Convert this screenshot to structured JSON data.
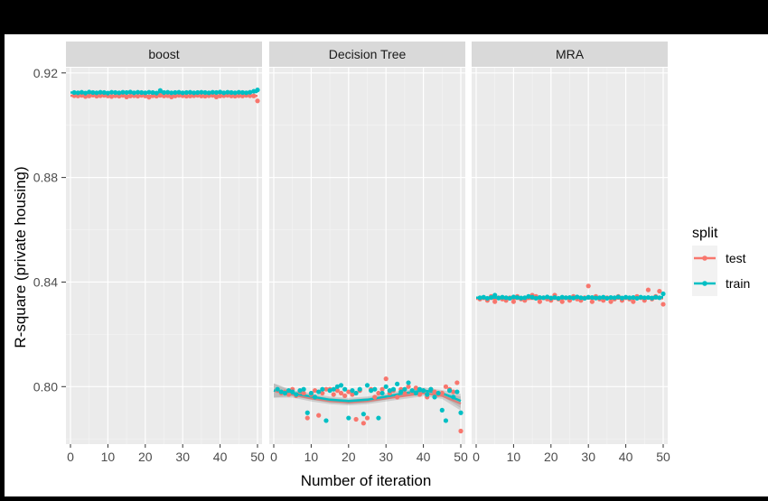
{
  "chart_data": {
    "type": "scatter",
    "facet_by": "model",
    "panels": [
      "boost",
      "Decision Tree",
      "MRA"
    ],
    "xlabel": "Number of iteration",
    "ylabel": "R-square (private housing)",
    "xlim": [
      0,
      50
    ],
    "xticks": [
      0,
      10,
      20,
      30,
      40,
      50
    ],
    "ylim": [
      0.778,
      0.922
    ],
    "yticks": [
      0.8,
      0.84,
      0.88,
      0.92
    ],
    "ytick_labels": [
      "0.80",
      "0.84",
      "0.88",
      "0.92"
    ],
    "grid": true,
    "smooth_overlay": true,
    "legend": {
      "title": "split",
      "position": "right",
      "entries": [
        {
          "name": "test",
          "color": "#F8766D"
        },
        {
          "name": "train",
          "color": "#00BFC4"
        }
      ]
    },
    "x": [
      1,
      2,
      3,
      4,
      5,
      6,
      7,
      8,
      9,
      10,
      11,
      12,
      13,
      14,
      15,
      16,
      17,
      18,
      19,
      20,
      21,
      22,
      23,
      24,
      25,
      26,
      27,
      28,
      29,
      30,
      31,
      32,
      33,
      34,
      35,
      36,
      37,
      38,
      39,
      40,
      41,
      42,
      43,
      44,
      45,
      46,
      47,
      48,
      49,
      50
    ],
    "series": [
      {
        "panel": "boost",
        "name": "test",
        "values": [
          0.9113,
          0.9112,
          0.9114,
          0.911,
          0.9112,
          0.9115,
          0.9111,
          0.9113,
          0.9114,
          0.9112,
          0.911,
          0.9113,
          0.9111,
          0.9114,
          0.9108,
          0.9112,
          0.9113,
          0.9111,
          0.9114,
          0.9112,
          0.9107,
          0.9113,
          0.9111,
          0.9114,
          0.9112,
          0.9113,
          0.9108,
          0.9112,
          0.9114,
          0.9113,
          0.9111,
          0.9112,
          0.9113,
          0.9114,
          0.9112,
          0.9111,
          0.9113,
          0.9114,
          0.9108,
          0.9112,
          0.9113,
          0.9114,
          0.9112,
          0.9111,
          0.9113,
          0.9112,
          0.9114,
          0.9113,
          0.9112,
          0.9093
        ]
      },
      {
        "panel": "boost",
        "name": "train",
        "values": [
          0.9125,
          0.9124,
          0.9126,
          0.9123,
          0.9127,
          0.9125,
          0.9124,
          0.9126,
          0.9125,
          0.9123,
          0.9126,
          0.9125,
          0.9124,
          0.9126,
          0.9125,
          0.9127,
          0.9124,
          0.9126,
          0.9125,
          0.9124,
          0.9126,
          0.9125,
          0.9123,
          0.9133,
          0.9125,
          0.9126,
          0.9124,
          0.9125,
          0.9126,
          0.9124,
          0.9125,
          0.9126,
          0.9124,
          0.9125,
          0.9126,
          0.9125,
          0.9124,
          0.9126,
          0.9125,
          0.9127,
          0.9124,
          0.9126,
          0.9125,
          0.9124,
          0.9126,
          0.9125,
          0.9124,
          0.9126,
          0.913,
          0.9135
        ]
      },
      {
        "panel": "Decision Tree",
        "name": "test",
        "values": [
          0.7985,
          0.7975,
          0.798,
          0.797,
          0.799,
          0.7965,
          0.798,
          0.7975,
          0.788,
          0.797,
          0.7985,
          0.789,
          0.7975,
          0.799,
          0.799,
          0.797,
          0.7985,
          0.7975,
          0.7965,
          0.798,
          0.797,
          0.7875,
          0.7985,
          0.786,
          0.788,
          0.799,
          0.796,
          0.7975,
          0.799,
          0.803,
          0.7975,
          0.7985,
          0.796,
          0.799,
          0.7975,
          0.8,
          0.798,
          0.7995,
          0.797,
          0.7985,
          0.796,
          0.799,
          0.798,
          0.797,
          0.7975,
          0.8,
          0.799,
          0.798,
          0.8015,
          0.783
        ]
      },
      {
        "panel": "Decision Tree",
        "name": "train",
        "values": [
          0.799,
          0.798,
          0.7975,
          0.7985,
          0.798,
          0.797,
          0.7985,
          0.799,
          0.79,
          0.7975,
          0.796,
          0.798,
          0.799,
          0.787,
          0.7985,
          0.799,
          0.8,
          0.8005,
          0.799,
          0.788,
          0.7985,
          0.7975,
          0.799,
          0.7895,
          0.8005,
          0.7985,
          0.799,
          0.788,
          0.7975,
          0.8,
          0.7985,
          0.799,
          0.801,
          0.798,
          0.799,
          0.8015,
          0.7985,
          0.7975,
          0.799,
          0.7985,
          0.797,
          0.799,
          0.796,
          0.7975,
          0.791,
          0.787,
          0.7985,
          0.796,
          0.798,
          0.79
        ]
      },
      {
        "panel": "MRA",
        "name": "test",
        "values": [
          0.8335,
          0.834,
          0.833,
          0.8345,
          0.8325,
          0.834,
          0.8335,
          0.833,
          0.834,
          0.8325,
          0.8345,
          0.8335,
          0.833,
          0.834,
          0.835,
          0.8345,
          0.8325,
          0.834,
          0.8335,
          0.833,
          0.835,
          0.8335,
          0.8325,
          0.834,
          0.833,
          0.8345,
          0.8335,
          0.833,
          0.834,
          0.8385,
          0.8325,
          0.8345,
          0.8335,
          0.833,
          0.834,
          0.8325,
          0.8335,
          0.8345,
          0.833,
          0.834,
          0.8335,
          0.8325,
          0.8345,
          0.834,
          0.833,
          0.837,
          0.8335,
          0.8345,
          0.8365,
          0.8315
        ]
      },
      {
        "panel": "MRA",
        "name": "train",
        "values": [
          0.834,
          0.8342,
          0.8338,
          0.8341,
          0.835,
          0.8339,
          0.8342,
          0.834,
          0.8338,
          0.8343,
          0.8341,
          0.8339,
          0.834,
          0.8345,
          0.8342,
          0.8338,
          0.8341,
          0.834,
          0.8343,
          0.8339,
          0.8341,
          0.8338,
          0.8342,
          0.834,
          0.8341,
          0.8339,
          0.8343,
          0.834,
          0.8338,
          0.8342,
          0.8341,
          0.8339,
          0.834,
          0.8342,
          0.8338,
          0.8341,
          0.834,
          0.8343,
          0.8339,
          0.8342,
          0.834,
          0.8341,
          0.8338,
          0.8342,
          0.834,
          0.8341,
          0.8339,
          0.8342,
          0.834,
          0.8355
        ]
      }
    ],
    "smooth": [
      {
        "panel": "boost",
        "name": "test",
        "x": [
          0,
          10,
          20,
          30,
          40,
          50
        ],
        "values": [
          0.9113,
          0.9112,
          0.9112,
          0.9112,
          0.9113,
          0.9112
        ]
      },
      {
        "panel": "boost",
        "name": "train",
        "x": [
          0,
          10,
          20,
          30,
          40,
          50
        ],
        "values": [
          0.9125,
          0.9125,
          0.9125,
          0.9125,
          0.9125,
          0.9127
        ]
      },
      {
        "panel": "Decision Tree",
        "name": "test",
        "x": [
          0,
          5,
          10,
          15,
          20,
          25,
          30,
          35,
          40,
          45,
          50
        ],
        "values": [
          0.7985,
          0.797,
          0.7955,
          0.7945,
          0.794,
          0.7945,
          0.7955,
          0.7965,
          0.7975,
          0.7965,
          0.7935
        ]
      },
      {
        "panel": "Decision Tree",
        "name": "train",
        "x": [
          0,
          5,
          10,
          15,
          20,
          25,
          30,
          35,
          40,
          45,
          50
        ],
        "values": [
          0.7985,
          0.7975,
          0.7962,
          0.795,
          0.7945,
          0.795,
          0.7962,
          0.7975,
          0.7985,
          0.7975,
          0.7945
        ]
      },
      {
        "panel": "MRA",
        "name": "test",
        "x": [
          0,
          10,
          20,
          30,
          40,
          50
        ],
        "values": [
          0.8336,
          0.8336,
          0.8336,
          0.8337,
          0.8337,
          0.8338
        ]
      },
      {
        "panel": "MRA",
        "name": "train",
        "x": [
          0,
          10,
          20,
          30,
          40,
          50
        ],
        "values": [
          0.834,
          0.834,
          0.834,
          0.8341,
          0.834,
          0.8342
        ]
      }
    ]
  }
}
